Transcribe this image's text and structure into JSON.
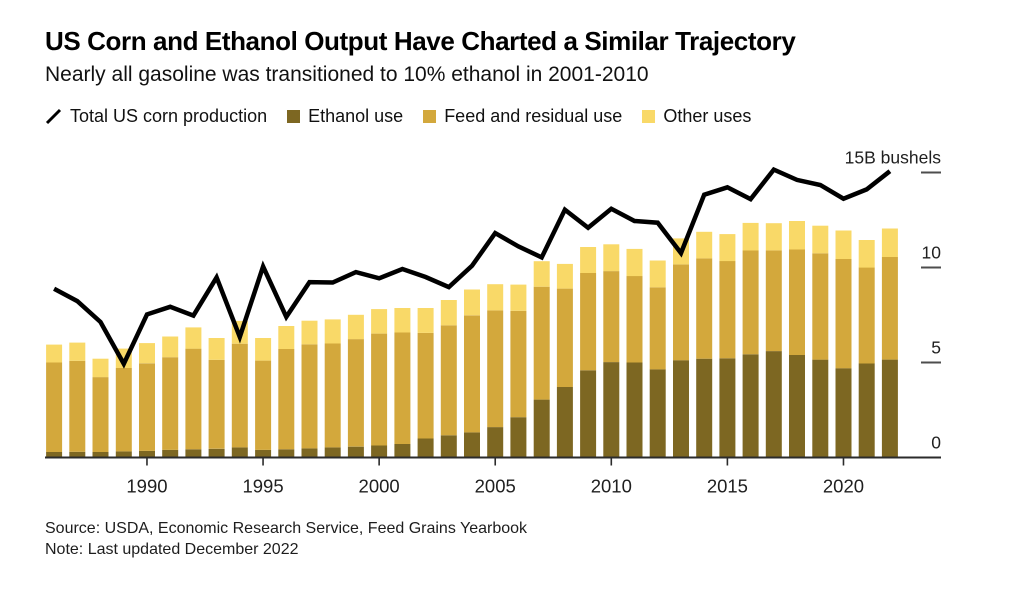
{
  "header": {
    "title": "US Corn and Ethanol Output Have Charted a Similar Trajectory",
    "subtitle": "Nearly all gasoline was transitioned to 10% ethanol in 2001-2010"
  },
  "legend": {
    "items": [
      {
        "label": "Total US corn production",
        "type": "line",
        "color": "#000000"
      },
      {
        "label": "Ethanol use",
        "type": "swatch",
        "color": "#7D6722"
      },
      {
        "label": "Feed and residual use",
        "type": "swatch",
        "color": "#D3A83C"
      },
      {
        "label": "Other uses",
        "type": "swatch",
        "color": "#F9D968"
      }
    ]
  },
  "footer": {
    "source": "Source: USDA, Economic Research Service, Feed Grains Yearbook",
    "note": "Note: Last updated December 2022"
  },
  "chart_data": {
    "type": "bar",
    "stacked": true,
    "title": "US Corn and Ethanol Output Have Charted a Similar Trajectory",
    "unit": "B bushels",
    "grid": false,
    "legend_position": "top",
    "ylim": [
      0,
      15.5
    ],
    "yticks": [
      0,
      5,
      10,
      15
    ],
    "ytick_top_label": "15B bushels",
    "xticks": [
      1990,
      1995,
      2000,
      2005,
      2010,
      2015,
      2020
    ],
    "x_years": [
      1986,
      1987,
      1988,
      1989,
      1990,
      1991,
      1992,
      1993,
      1994,
      1995,
      1996,
      1997,
      1998,
      1999,
      2000,
      2001,
      2002,
      2003,
      2004,
      2005,
      2006,
      2007,
      2008,
      2009,
      2010,
      2011,
      2012,
      2013,
      2014,
      2015,
      2016,
      2017,
      2018,
      2019,
      2020,
      2021,
      2022
    ],
    "series": [
      {
        "name": "Ethanol use",
        "color": "#7D6722",
        "values": [
          0.29,
          0.3,
          0.29,
          0.32,
          0.35,
          0.4,
          0.43,
          0.46,
          0.53,
          0.4,
          0.43,
          0.48,
          0.53,
          0.57,
          0.63,
          0.71,
          1.0,
          1.17,
          1.32,
          1.6,
          2.12,
          3.05,
          3.71,
          4.59,
          5.02,
          5.0,
          4.64,
          5.12,
          5.2,
          5.22,
          5.43,
          5.6,
          5.4,
          5.15,
          4.7,
          4.95,
          5.15
        ]
      },
      {
        "name": "Feed and residual use",
        "color": "#D3A83C",
        "values": [
          4.71,
          4.79,
          3.94,
          4.39,
          4.61,
          4.88,
          5.3,
          4.68,
          5.46,
          4.7,
          5.28,
          5.48,
          5.47,
          5.66,
          5.89,
          5.87,
          5.56,
          5.79,
          6.16,
          6.14,
          5.6,
          5.94,
          5.18,
          5.12,
          4.79,
          4.55,
          4.32,
          5.04,
          5.28,
          5.12,
          5.47,
          5.3,
          5.55,
          5.6,
          5.75,
          5.05,
          5.4
        ]
      },
      {
        "name": "Other uses",
        "color": "#F9D968",
        "values": [
          0.94,
          0.96,
          0.97,
          1.02,
          1.06,
          1.09,
          1.12,
          1.15,
          1.2,
          1.19,
          1.21,
          1.24,
          1.27,
          1.28,
          1.29,
          1.29,
          1.31,
          1.33,
          1.36,
          1.38,
          1.38,
          1.34,
          1.3,
          1.37,
          1.41,
          1.43,
          1.41,
          1.37,
          1.4,
          1.42,
          1.45,
          1.43,
          1.5,
          1.45,
          1.5,
          1.45,
          1.5
        ]
      }
    ],
    "line_series": {
      "name": "Total US corn production",
      "color": "#000000",
      "values": [
        8.88,
        8.23,
        7.13,
        4.93,
        7.53,
        7.93,
        7.47,
        9.48,
        6.34,
        10.05,
        7.4,
        9.23,
        9.21,
        9.76,
        9.43,
        9.92,
        9.5,
        8.97,
        10.09,
        11.81,
        11.11,
        10.53,
        13.04,
        12.09,
        13.09,
        12.45,
        12.36,
        10.76,
        13.83,
        14.22,
        13.6,
        15.15,
        14.61,
        14.34,
        13.62,
        14.11,
        15.07
      ]
    },
    "axis_color": "#2b2b2b",
    "tick_text_color": "#1f1f1f"
  }
}
